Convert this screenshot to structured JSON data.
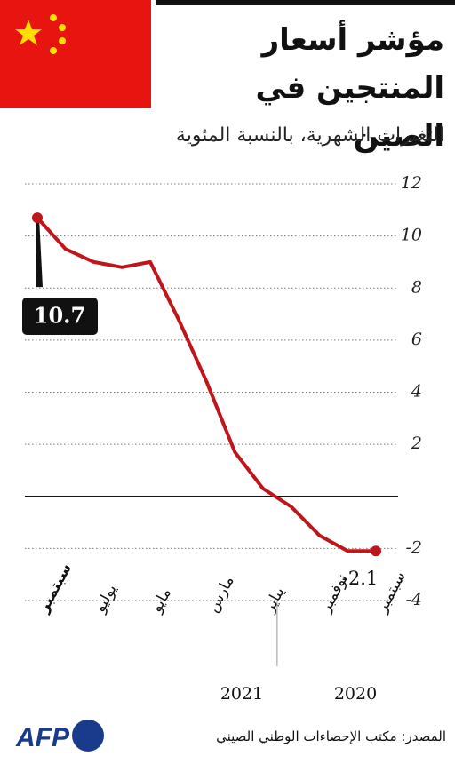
{
  "chart_data": {
    "type": "line",
    "title": "مؤشر أسعار المنتجين في الصين",
    "subtitle": "التغيرات الشهرية، بالنسبة المئوية",
    "categories": [
      "سبتمبر",
      null,
      "نوفمبر",
      null,
      "يناير",
      null,
      "مارس",
      null,
      "مايو",
      null,
      "يوليو",
      null,
      "سبتمبر"
    ],
    "years": [
      "2020",
      "2021"
    ],
    "x_reversed": true,
    "series": [
      {
        "name": "مؤشر أسعار المنتجين",
        "color": "#c0161b",
        "values": [
          -2.1,
          -2.1,
          -1.5,
          -0.4,
          0.3,
          1.7,
          4.4,
          6.8,
          9.0,
          8.8,
          9.0,
          9.5,
          10.7
        ]
      }
    ],
    "ylim": [
      -4,
      12
    ],
    "yticks": [
      12,
      10,
      8,
      6,
      4,
      2,
      -2,
      -4
    ],
    "grid": true,
    "source": "المصدر: مكتب الإحصاءات الوطني الصيني",
    "logo": "AFP"
  }
}
